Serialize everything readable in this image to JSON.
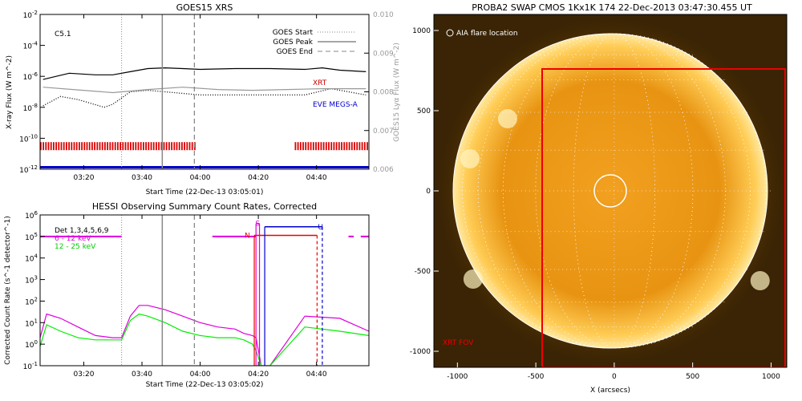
{
  "chart_data": [
    {
      "type": "line",
      "title": "GOES15 XRS",
      "xlabel": "Start Time (22-Dec-13 03:05:01)",
      "ylabel": "X-ray Flux (W m^-2)",
      "ylabel_right": "GOES15 Lyα Flux (W m^-2)",
      "xlim": [
        3.083,
        4.967
      ],
      "ylim_exp": [
        -12,
        -2
      ],
      "ylim_right": [
        0.006,
        0.01
      ],
      "xticks": [
        "03:20",
        "03:40",
        "04:00",
        "04:20",
        "04:40"
      ],
      "yticks_left": [
        "10^-12",
        "10^-10",
        "10^-8",
        "10^-6",
        "10^-4",
        "10^-2"
      ],
      "yticks_right": [
        "0.006",
        "0.007",
        "0.008",
        "0.009",
        "0.010"
      ],
      "class_label": "C5.1",
      "legend": [
        {
          "label": "GOES Start",
          "style": "dotted"
        },
        {
          "label": "GOES Peak",
          "style": "solid"
        },
        {
          "label": "GOES End",
          "style": "dashed"
        }
      ],
      "annotations": [
        {
          "text": "XRT",
          "color": "#cc0000"
        },
        {
          "text": "EVE MEGS-A",
          "color": "#0000cc"
        }
      ],
      "event_times": {
        "start": 3.55,
        "peak": 3.783,
        "end": 3.967
      },
      "series": [
        {
          "name": "long",
          "color": "#000000",
          "style": "solid",
          "x": [
            3.1,
            3.25,
            3.4,
            3.5,
            3.6,
            3.7,
            3.8,
            3.9,
            4.0,
            4.2,
            4.4,
            4.6,
            4.7,
            4.8,
            4.95
          ],
          "log_y": [
            -6.2,
            -5.8,
            -5.9,
            -5.9,
            -5.7,
            -5.5,
            -5.45,
            -5.5,
            -5.55,
            -5.5,
            -5.5,
            -5.55,
            -5.45,
            -5.6,
            -5.7
          ]
        },
        {
          "name": "short",
          "color": "#000000",
          "style": "dotted",
          "x": [
            3.1,
            3.2,
            3.3,
            3.45,
            3.5,
            3.6,
            3.7,
            3.8,
            4.0,
            4.2,
            4.4,
            4.6,
            4.75,
            4.85,
            4.95
          ],
          "log_y": [
            -7.9,
            -7.3,
            -7.5,
            -8.0,
            -7.8,
            -7.0,
            -6.9,
            -7.0,
            -7.2,
            -7.2,
            -7.2,
            -7.2,
            -6.8,
            -7.0,
            -7.2
          ]
        },
        {
          "name": "Lyman-alpha",
          "color": "#999999",
          "style": "solid",
          "x": [
            3.1,
            3.3,
            3.5,
            3.7,
            3.9,
            4.1,
            4.3,
            4.5,
            4.7,
            4.95
          ],
          "right_y": [
            0.00812,
            0.00805,
            0.00798,
            0.00806,
            0.00812,
            0.00806,
            0.00804,
            0.00806,
            0.00808,
            0.00808
          ]
        }
      ],
      "xrt_coverage": [
        [
          3.083,
          3.967
        ],
        [
          4.542,
          4.967
        ]
      ],
      "eve_coverage": [
        [
          3.083,
          4.967
        ]
      ]
    },
    {
      "type": "line",
      "title": "HESSI Observing Summary Count Rates, Corrected",
      "xlabel": "Start Time (22-Dec-13 03:05:02)",
      "ylabel": "Corrected Count Rate (s^-1 detector^-1)",
      "xlim": [
        3.083,
        4.967
      ],
      "ylim_exp": [
        -1,
        6
      ],
      "xticks": [
        "03:20",
        "03:40",
        "04:00",
        "04:20",
        "04:40"
      ],
      "yticks": [
        "10^-1",
        "10^0",
        "10^1",
        "10^2",
        "10^3",
        "10^4",
        "10^5",
        "10^6"
      ],
      "legend": [
        {
          "label": "Det 1,3,4,5,6,9",
          "color": "#000000"
        },
        {
          "label": "6 - 12 keV",
          "color": "#dd00dd"
        },
        {
          "label": "12 - 25 keV",
          "color": "#00ee00"
        }
      ],
      "flag_labels": [
        {
          "text": "N",
          "color": "#ee0000"
        },
        {
          "text": "S",
          "color": "#dd00dd"
        },
        {
          "text": "U",
          "color": "#0000cc"
        }
      ],
      "event_times": {
        "start": 3.55,
        "peak": 3.783,
        "end": 3.967
      },
      "series": [
        {
          "name": "6 - 12 keV",
          "color": "#dd00dd",
          "x": [
            3.083,
            3.12,
            3.2,
            3.3,
            3.4,
            3.5,
            3.55,
            3.6,
            3.65,
            3.7,
            3.8,
            3.9,
            4.0,
            4.1,
            4.2,
            4.25,
            4.3,
            4.32,
            4.35,
            4.4,
            4.6,
            4.8,
            4.967
          ],
          "log_y": [
            0.3,
            1.4,
            1.2,
            0.8,
            0.4,
            0.3,
            0.3,
            1.3,
            1.8,
            1.8,
            1.6,
            1.3,
            1.0,
            0.8,
            0.7,
            0.5,
            0.4,
            0.3,
            -1,
            -1,
            1.3,
            1.2,
            0.6
          ]
        },
        {
          "name": "12 - 25 keV",
          "color": "#00ee00",
          "x": [
            3.083,
            3.12,
            3.2,
            3.3,
            3.4,
            3.5,
            3.55,
            3.6,
            3.65,
            3.7,
            3.8,
            3.9,
            4.0,
            4.1,
            4.2,
            4.25,
            4.3,
            4.32,
            4.35,
            4.4,
            4.6,
            4.8,
            4.967
          ],
          "log_y": [
            -0.1,
            0.9,
            0.6,
            0.3,
            0.2,
            0.2,
            0.2,
            1.1,
            1.4,
            1.3,
            1.0,
            0.6,
            0.4,
            0.3,
            0.3,
            0.2,
            0.0,
            -0.3,
            -1,
            -1,
            0.8,
            0.6,
            0.4
          ]
        }
      ],
      "pre_line_level_exp": 5.0,
      "pre_line_spans": [
        [
          3.083,
          3.55
        ],
        [
          4.07,
          4.32
        ],
        [
          4.85,
          4.88
        ],
        [
          4.92,
          4.967
        ]
      ]
    },
    {
      "type": "image",
      "title": "PROBA2 SWAP CMOS 1Kx1K 174 22-Dec-2013 03:47:30.455 UT",
      "xlabel": "X (arcsecs)",
      "xlim": [
        -1150,
        1100
      ],
      "ylim": [
        -1100,
        1100
      ],
      "xticks": [
        "-1000",
        "-500",
        "0",
        "500",
        "1000"
      ],
      "yticks": [
        "-1000",
        "-500",
        "0",
        "500",
        "1000"
      ],
      "legend_text": "AIA flare location",
      "fov_label": "XRT FOV",
      "solar_radius_arcsec": 975,
      "flare_location": [
        0,
        0
      ],
      "flare_circle_radius_arcsec": 100,
      "xrt_fov": [
        -420,
        -1100,
        1100,
        780
      ]
    }
  ]
}
